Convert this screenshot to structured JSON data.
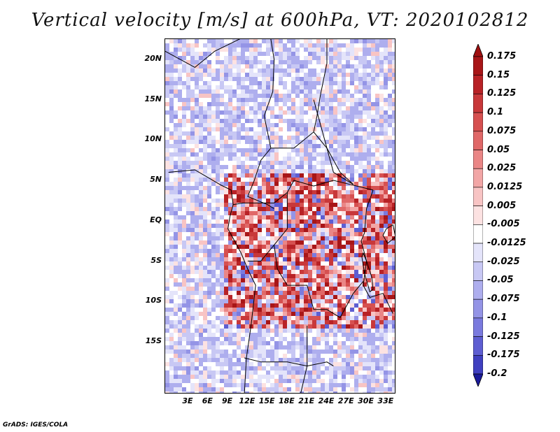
{
  "title": "Vertical velocity [m/s] at 600hPa, VT: 2020102812",
  "credit": "GrADS: IGES/COLA",
  "map": {
    "variable": "Vertical velocity",
    "level": "600hPa",
    "valid_time": "2020102812",
    "lat_range": [
      -21.5,
      22.5
    ],
    "lon_range": [
      -0.5,
      34.5
    ],
    "lat_labels": [
      {
        "value": 20,
        "label": "20N"
      },
      {
        "value": 15,
        "label": "15N"
      },
      {
        "value": 10,
        "label": "10N"
      },
      {
        "value": 5,
        "label": "5N"
      },
      {
        "value": 0,
        "label": "EQ"
      },
      {
        "value": -5,
        "label": "5S"
      },
      {
        "value": -10,
        "label": "10S"
      },
      {
        "value": -15,
        "label": "15S"
      }
    ],
    "lon_labels": [
      {
        "value": 3,
        "label": "3E"
      },
      {
        "value": 6,
        "label": "6E"
      },
      {
        "value": 9,
        "label": "9E"
      },
      {
        "value": 12,
        "label": "12E"
      },
      {
        "value": 15,
        "label": "15E"
      },
      {
        "value": 18,
        "label": "18E"
      },
      {
        "value": 21,
        "label": "21E"
      },
      {
        "value": 24,
        "label": "24E"
      },
      {
        "value": 27,
        "label": "27E"
      },
      {
        "value": 30,
        "label": "30E"
      },
      {
        "value": 33,
        "label": "33E"
      }
    ]
  },
  "colorbar": {
    "levels": [
      {
        "label": "0.175",
        "color": "#a81618"
      },
      {
        "label": "0.15",
        "color": "#b82226"
      },
      {
        "label": "0.125",
        "color": "#c8383a"
      },
      {
        "label": "0.1",
        "color": "#d65050"
      },
      {
        "label": "0.075",
        "color": "#e06868"
      },
      {
        "label": "0.05",
        "color": "#ea8686"
      },
      {
        "label": "0.025",
        "color": "#f2a6a6"
      },
      {
        "label": "0.0125",
        "color": "#f8c4c4"
      },
      {
        "label": "0.005",
        "color": "#fce2e2"
      },
      {
        "label": "-0.005",
        "color": "#ffffff"
      },
      {
        "label": "-0.0125",
        "color": "#e4e4fa"
      },
      {
        "label": "-0.025",
        "color": "#c8c8f4"
      },
      {
        "label": "-0.05",
        "color": "#aeaeee"
      },
      {
        "label": "-0.075",
        "color": "#9494e6"
      },
      {
        "label": "-0.1",
        "color": "#7a7ade"
      },
      {
        "label": "-0.125",
        "color": "#5e5ed2"
      },
      {
        "label": "-0.175",
        "color": "#4040c0"
      },
      {
        "label": "-0.2",
        "color": "#2a2aaa"
      }
    ],
    "top_arrow_color": "#a01010",
    "bottom_arrow_color": "#1a1a9a"
  }
}
